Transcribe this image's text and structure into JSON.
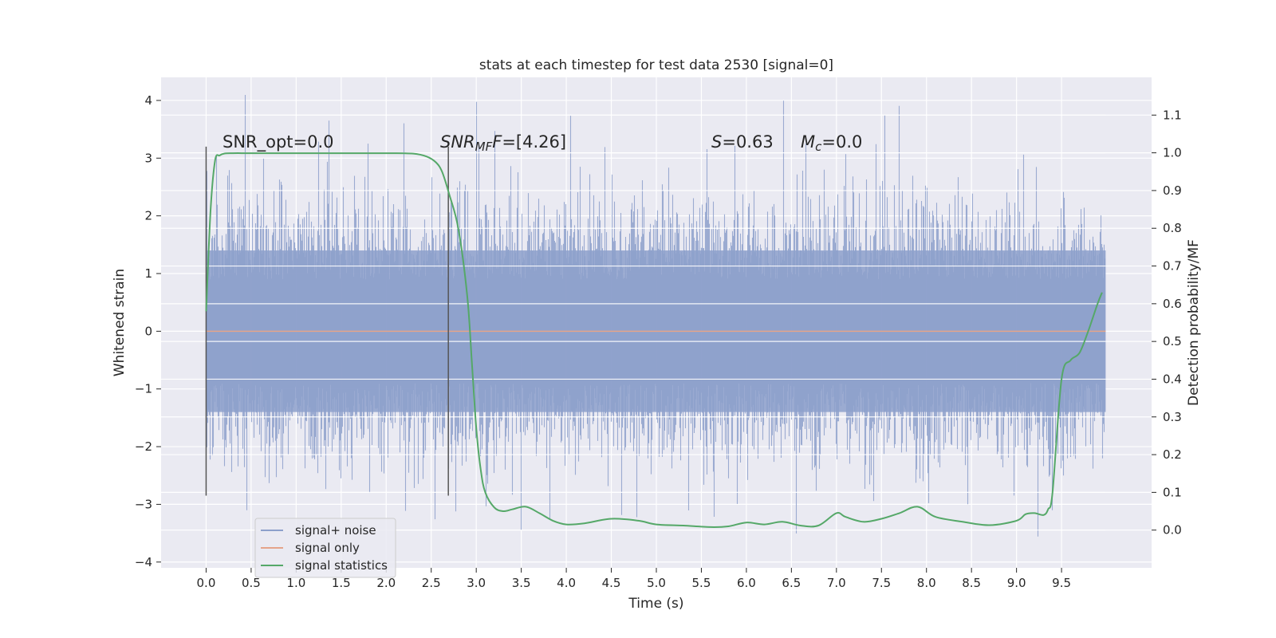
{
  "chart_data": {
    "type": "line",
    "title": "stats at each timestep for test data 2530 [signal=0]",
    "xlabel": "Time (s)",
    "ylabel": "Whitened strain",
    "y2label": "Detection probability/MF",
    "xlim": [
      -0.5,
      10.5
    ],
    "ylim": [
      -4.1,
      4.4
    ],
    "y2lim": [
      -0.1,
      1.2
    ],
    "x_ticks": [
      0.0,
      0.5,
      1.0,
      1.5,
      2.0,
      2.5,
      3.0,
      3.5,
      4.0,
      4.5,
      5.0,
      5.5,
      6.0,
      6.5,
      7.0,
      7.5,
      8.0,
      8.5,
      9.0,
      9.5
    ],
    "x_tick_labels": [
      "0.0",
      "0.5",
      "1.0",
      "1.5",
      "2.0",
      "2.5",
      "3.0",
      "3.5",
      "4.0",
      "4.5",
      "5.0",
      "5.5",
      "6.0",
      "6.5",
      "7.0",
      "7.5",
      "8.0",
      "8.5",
      "9.0",
      "9.5"
    ],
    "y_ticks": [
      4,
      3,
      2,
      1,
      0,
      -1,
      -2,
      -3,
      -4
    ],
    "y_tick_labels": [
      "4",
      "3",
      "2",
      "1",
      "0",
      "−1",
      "−2",
      "−3",
      "−4"
    ],
    "y2_ticks": [
      1.1,
      1.0,
      0.9,
      0.8,
      0.7,
      0.6,
      0.5,
      0.4,
      0.3,
      0.2,
      0.1,
      0.0
    ],
    "y2_tick_labels": [
      "1.1",
      "1.0",
      "0.9",
      "0.8",
      "0.7",
      "0.6",
      "0.5",
      "0.4",
      "0.3",
      "0.2",
      "0.1",
      "0.0"
    ],
    "grid": true,
    "legend": {
      "placement": "lower-left",
      "entries": [
        {
          "label": "signal+ noise",
          "color": "#8da0cb"
        },
        {
          "label": "signal only",
          "color": "#e5a48a"
        },
        {
          "label": "signal statistics",
          "color": "#55a868"
        }
      ]
    },
    "annotations": {
      "snr_opt": "SNR_opt=0.0",
      "snr_mf_main": "SNR",
      "snr_mf_sub": "MF",
      "snr_mf_value": "=[4.26]",
      "s_symbol": "S",
      "s_value": "=0.63",
      "mc_symbol": "M",
      "mc_sub": "c",
      "mc_value": "=0.0"
    },
    "vertical_markers": [
      {
        "x": 0.0,
        "y_range": [
          -2.85,
          3.2
        ]
      },
      {
        "x": 2.69,
        "y_range": [
          -2.85,
          3.2
        ]
      }
    ],
    "noise_envelope": {
      "x_range": [
        0.0,
        9.99
      ],
      "typical_upper": 2.3,
      "typical_lower": -2.3,
      "peak_upper": 4.1,
      "peak_lower": -3.7,
      "color": "#8da0cb"
    },
    "signal_only": {
      "x": [
        0.0,
        9.99
      ],
      "y": [
        0.0,
        0.0
      ],
      "color": "#e5a48a"
    },
    "signal_statistics": {
      "color": "#55a868",
      "x": [
        0.0,
        0.05,
        0.1,
        0.15,
        0.2,
        0.3,
        0.5,
        1.0,
        1.5,
        2.0,
        2.3,
        2.45,
        2.55,
        2.62,
        2.7,
        2.8,
        2.9,
        2.95,
        3.0,
        3.05,
        3.1,
        3.2,
        3.3,
        3.4,
        3.55,
        3.7,
        3.85,
        4.0,
        4.2,
        4.5,
        4.8,
        5.0,
        5.3,
        5.6,
        5.8,
        6.0,
        6.2,
        6.4,
        6.6,
        6.8,
        7.0,
        7.1,
        7.3,
        7.5,
        7.7,
        7.9,
        8.1,
        8.4,
        8.7,
        9.0,
        9.1,
        9.2,
        9.3,
        9.35,
        9.4,
        9.5,
        9.6,
        9.7,
        9.8,
        9.9,
        9.95
      ],
      "y": [
        0.58,
        0.85,
        0.98,
        0.993,
        0.998,
        0.999,
        0.999,
        0.999,
        0.999,
        0.999,
        0.998,
        0.99,
        0.975,
        0.95,
        0.89,
        0.8,
        0.62,
        0.45,
        0.27,
        0.16,
        0.1,
        0.06,
        0.05,
        0.055,
        0.062,
        0.045,
        0.025,
        0.015,
        0.018,
        0.03,
        0.025,
        0.015,
        0.012,
        0.008,
        0.01,
        0.02,
        0.015,
        0.022,
        0.012,
        0.012,
        0.045,
        0.035,
        0.022,
        0.03,
        0.045,
        0.062,
        0.035,
        0.022,
        0.013,
        0.025,
        0.042,
        0.045,
        0.04,
        0.055,
        0.1,
        0.4,
        0.45,
        0.47,
        0.53,
        0.6,
        0.63
      ]
    }
  }
}
